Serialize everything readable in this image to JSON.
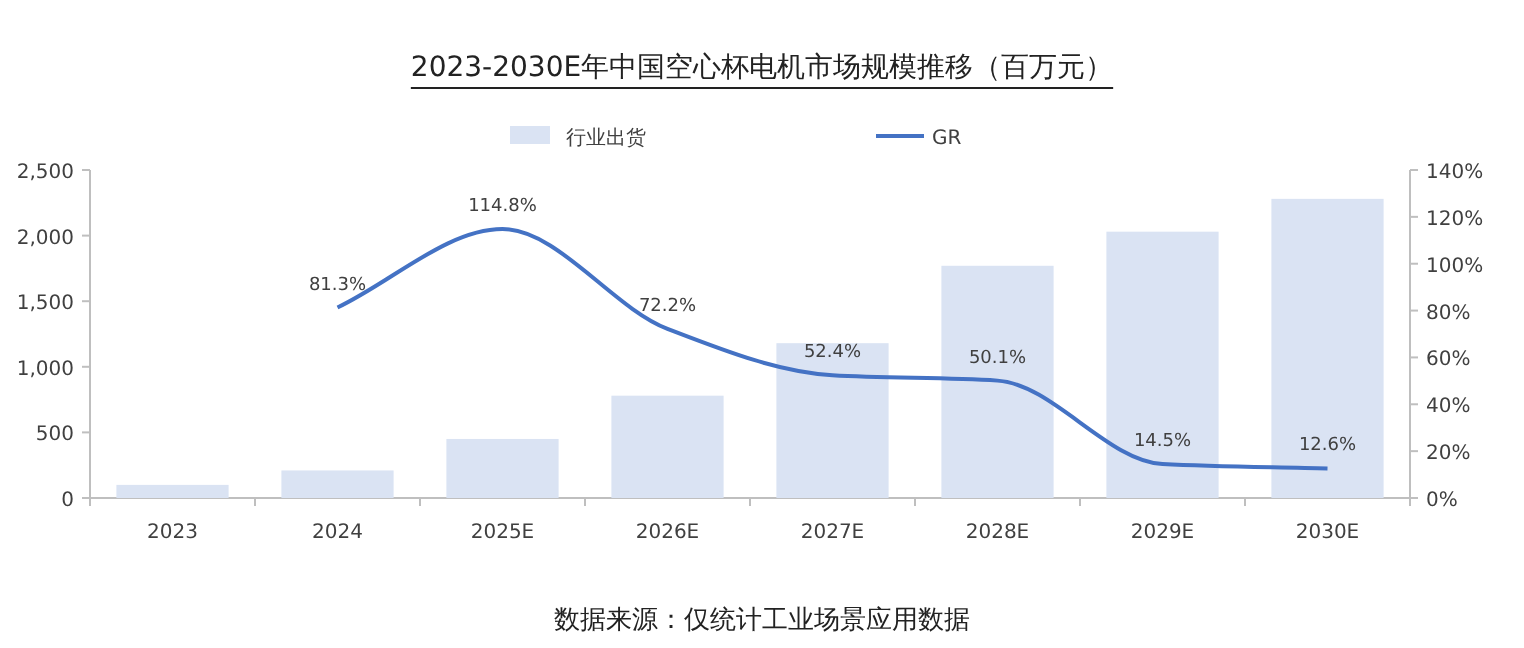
{
  "chart_data": {
    "type": "bar",
    "title": "2023-2030E年中国空心杯电机市场规模推移（百万元）",
    "categories": [
      "2023",
      "2024",
      "2025E",
      "2026E",
      "2027E",
      "2028E",
      "2029E",
      "2030E"
    ],
    "series": [
      {
        "name": "行业出货",
        "color": "#dae3f3",
        "values": [
          100,
          210,
          450,
          780,
          1180,
          1770,
          2030,
          2280
        ]
      },
      {
        "name": "GR",
        "type": "line",
        "axis": "y2",
        "color": "#4472c4",
        "values": [
          null,
          81.3,
          114.8,
          72.2,
          52.4,
          50.1,
          14.5,
          12.6
        ],
        "value_labels": [
          null,
          "81.3%",
          "114.8%",
          "72.2%",
          "52.4%",
          "50.1%",
          "14.5%",
          "12.6%"
        ]
      }
    ],
    "ylim": [
      0,
      2500
    ],
    "yticks": [
      {
        "value": 0,
        "label": "0"
      },
      {
        "value": 500,
        "label": "500"
      },
      {
        "value": 1000,
        "label": "1,000"
      },
      {
        "value": 1500,
        "label": "1,500"
      },
      {
        "value": 2000,
        "label": "2,000"
      },
      {
        "value": 2500,
        "label": "2,500"
      }
    ],
    "y2lim": [
      0,
      140
    ],
    "y2ticks": [
      {
        "value": 0,
        "label": "0%"
      },
      {
        "value": 20,
        "label": "20%"
      },
      {
        "value": 40,
        "label": "40%"
      },
      {
        "value": 60,
        "label": "60%"
      },
      {
        "value": 80,
        "label": "80%"
      },
      {
        "value": 100,
        "label": "100%"
      },
      {
        "value": 120,
        "label": "120%"
      },
      {
        "value": 140,
        "label": "140%"
      }
    ],
    "grid": false,
    "legend": "top",
    "marker": "none",
    "line_style": "solid",
    "annotations": [
      "数据来源：仅统计工业场景应用数据"
    ]
  }
}
